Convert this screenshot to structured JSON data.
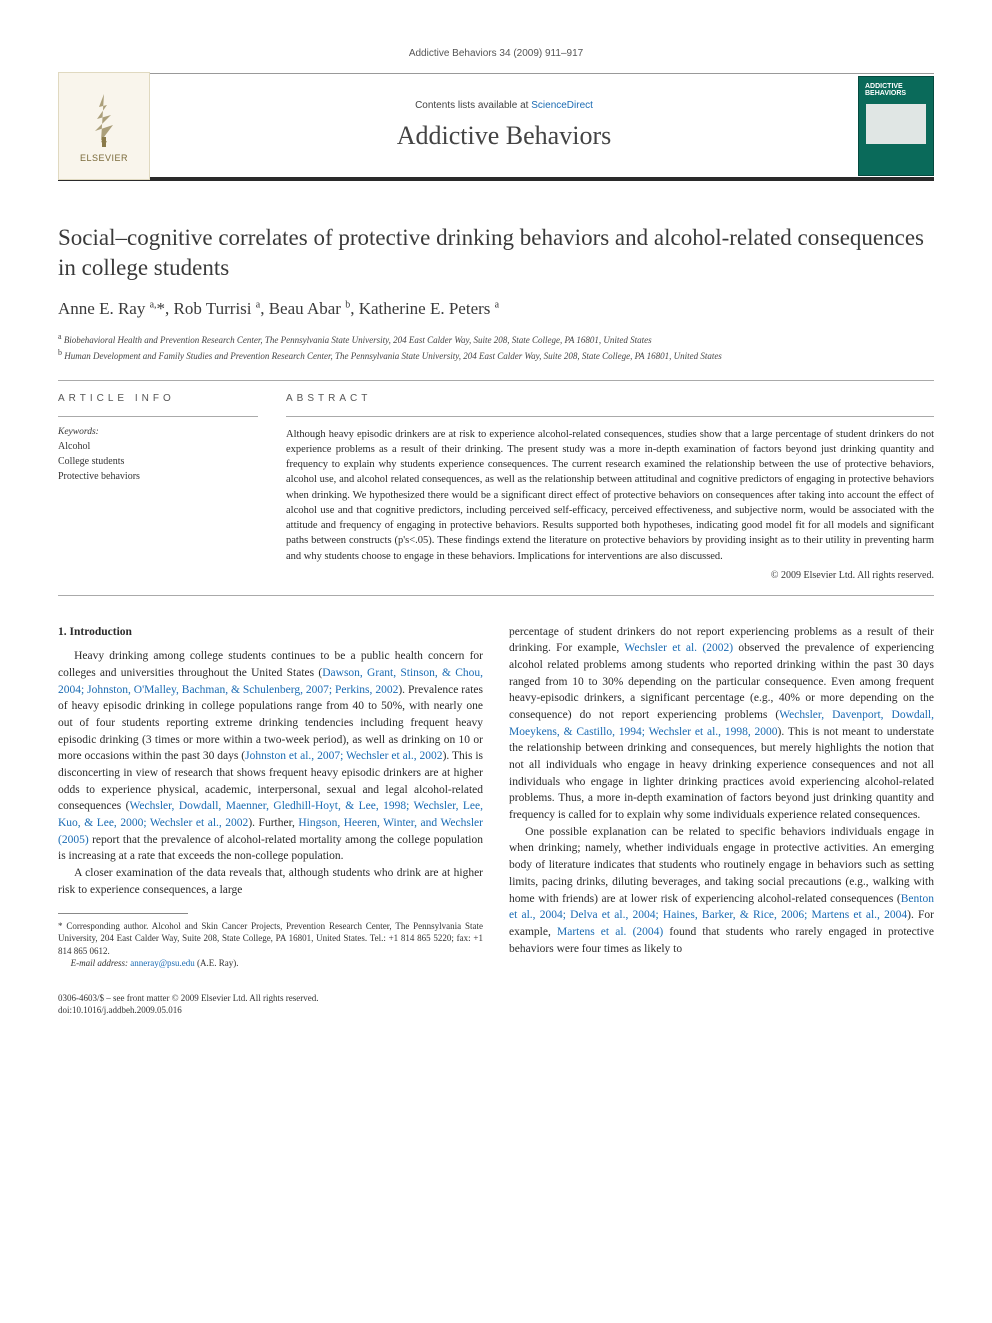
{
  "running_head": "Addictive Behaviors 34 (2009) 911–917",
  "masthead": {
    "publisher_name": "ELSEVIER",
    "contents_prefix": "Contents lists available at ",
    "contents_link": "ScienceDirect",
    "journal_name": "Addictive Behaviors",
    "cover_label": "ADDICTIVE BEHAVIORS"
  },
  "article": {
    "title": "Social–cognitive correlates of protective drinking behaviors and alcohol-related consequences in college students",
    "authors_html": "Anne E. Ray <sup>a,</sup>*, Rob Turrisi <sup>a</sup>, Beau Abar <sup>b</sup>, Katherine E. Peters <sup>a</sup>",
    "affiliations": {
      "a": "Biobehavioral Health and Prevention Research Center, The Pennsylvania State University, 204 East Calder Way, Suite 208, State College, PA 16801, United States",
      "b": "Human Development and Family Studies and Prevention Research Center, The Pennsylvania State University, 204 East Calder Way, Suite 208, State College, PA 16801, United States"
    }
  },
  "info": {
    "label": "ARTICLE INFO",
    "keywords_head": "Keywords:",
    "keywords": [
      "Alcohol",
      "College students",
      "Protective behaviors"
    ]
  },
  "abstract": {
    "label": "ABSTRACT",
    "text": "Although heavy episodic drinkers are at risk to experience alcohol-related consequences, studies show that a large percentage of student drinkers do not experience problems as a result of their drinking. The present study was a more in-depth examination of factors beyond just drinking quantity and frequency to explain why students experience consequences. The current research examined the relationship between the use of protective behaviors, alcohol use, and alcohol related consequences, as well as the relationship between attitudinal and cognitive predictors of engaging in protective behaviors when drinking. We hypothesized there would be a significant direct effect of protective behaviors on consequences after taking into account the effect of alcohol use and that cognitive predictors, including perceived self-efficacy, perceived effectiveness, and subjective norm, would be associated with the attitude and frequency of engaging in protective behaviors. Results supported both hypotheses, indicating good model fit for all models and significant paths between constructs (p's<.05). These findings extend the literature on protective behaviors by providing insight as to their utility in preventing harm and why students choose to engage in these behaviors. Implications for interventions are also discussed.",
    "copyright": "© 2009 Elsevier Ltd. All rights reserved."
  },
  "body": {
    "section_heading": "1. Introduction",
    "p1a": "Heavy drinking among college students continues to be a public health concern for colleges and universities throughout the United States (",
    "p1_ref1": "Dawson, Grant, Stinson, & Chou, 2004; Johnston, O'Malley, Bachman, & Schulenberg, 2007; Perkins, 2002",
    "p1b": "). Prevalence rates of heavy episodic drinking in college populations range from 40 to 50%, with nearly one out of four students reporting extreme drinking tendencies including frequent heavy episodic drinking (3 times or more within a two-week period), as well as drinking on 10 or more occasions within the past 30 days (",
    "p1_ref2": "Johnston et al., 2007; Wechsler et al., 2002",
    "p1c": "). This is disconcerting in view of research that shows frequent heavy episodic drinkers are at higher odds to experience physical, academic, interpersonal, sexual and legal alcohol-related consequences (",
    "p1_ref3": "Wechsler, Dowdall, Maenner, Gledhill-Hoyt, & Lee, 1998; Wechsler, Lee, Kuo, & Lee, 2000; Wechsler et al., 2002",
    "p1d": "). Further, ",
    "p1_ref4": "Hingson, Heeren, Winter, and Wechsler (2005)",
    "p1e": " report that the prevalence of alcohol-related mortality among the college population is increasing at a rate that exceeds the non-college population.",
    "p2": "A closer examination of the data reveals that, although students who drink are at higher risk to experience consequences, a large",
    "p3a": "percentage of student drinkers do not report experiencing problems as a result of their drinking. For example, ",
    "p3_ref1": "Wechsler et al. (2002)",
    "p3b": " observed the prevalence of experiencing alcohol related problems among students who reported drinking within the past 30 days ranged from 10 to 30% depending on the particular consequence. Even among frequent heavy-episodic drinkers, a significant percentage (e.g., 40% or more depending on the consequence) do not report experiencing problems (",
    "p3_ref2": "Wechsler, Davenport, Dowdall, Moeykens, & Castillo, 1994; Wechsler et al., 1998, 2000",
    "p3c": "). This is not meant to understate the relationship between drinking and consequences, but merely highlights the notion that not all individuals who engage in heavy drinking experience consequences and not all individuals who engage in lighter drinking practices avoid experiencing alcohol-related problems. Thus, a more in-depth examination of factors beyond just drinking quantity and frequency is called for to explain why some individuals experience related consequences.",
    "p4a": "One possible explanation can be related to specific behaviors individuals engage in when drinking; namely, whether individuals engage in protective activities. An emerging body of literature indicates that students who routinely engage in behaviors such as setting limits, pacing drinks, diluting beverages, and taking social precautions (e.g., walking with home with friends) are at lower risk of experiencing alcohol-related consequences (",
    "p4_ref1": "Benton et al., 2004; Delva et al., 2004; Haines, Barker, & Rice, 2006; Martens et al., 2004",
    "p4b": "). For example, ",
    "p4_ref2": "Martens et al. (2004)",
    "p4c": " found that students who rarely engaged in protective behaviors were four times as likely to"
  },
  "footnotes": {
    "corresponding": "* Corresponding author. Alcohol and Skin Cancer Projects, Prevention Research Center, The Pennsylvania State University, 204 East Calder Way, Suite 208, State College, PA 16801, United States. Tel.: +1 814 865 5220; fax: +1 814 865 0612.",
    "email_label": "E-mail address:",
    "email": "anneray@psu.edu",
    "email_tail": " (A.E. Ray)."
  },
  "footer": {
    "left_line1": "0306-4603/$ – see front matter © 2009 Elsevier Ltd. All rights reserved.",
    "left_line2": "doi:10.1016/j.addbeh.2009.05.016"
  },
  "colors": {
    "link": "#1a6bb3",
    "rule_dark": "#2a2a2a",
    "publisher_bg": "#f9f5ec",
    "cover_bg": "#0a6a5a"
  }
}
